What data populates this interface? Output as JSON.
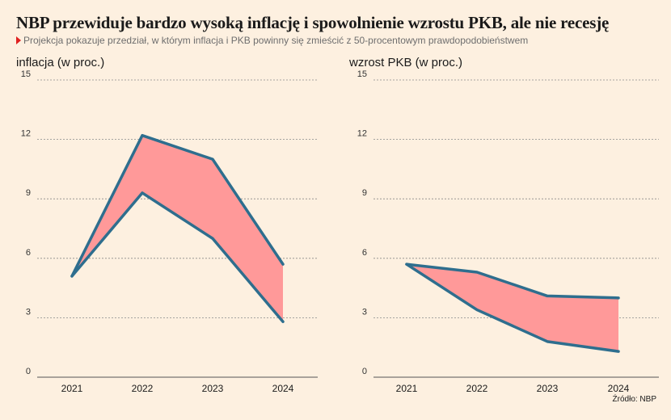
{
  "title": "NBP przewiduje bardzo wysoką inflację i spowolnienie wzrostu PKB, ale nie recesję",
  "subtitle": "Projekcja pokazuje przedział, w którym inflacja i PKB powinny się zmieścić z 50-procentowym prawdopodobieństwem",
  "source": "Źródło: NBP",
  "colors": {
    "band_fill": "#ff9999",
    "line": "#2e6e8e",
    "grid": "#8a8a8a",
    "background": "#fdf0e0"
  },
  "chart_data": [
    {
      "type": "area",
      "title": "inflacja (w proc.)",
      "categories": [
        "2021",
        "2022",
        "2023",
        "2024"
      ],
      "series": [
        {
          "values": [
            5.1,
            12.2,
            11.0,
            5.7
          ]
        },
        {
          "values": [
            5.1,
            9.3,
            7.0,
            2.8
          ]
        }
      ],
      "ylim": [
        0,
        15
      ],
      "yticks": [
        0,
        3,
        6,
        9,
        12,
        15
      ],
      "grid": true
    },
    {
      "type": "area",
      "title": "wzrost PKB (w proc.)",
      "categories": [
        "2021",
        "2022",
        "2023",
        "2024"
      ],
      "series": [
        {
          "values": [
            5.7,
            5.3,
            4.1,
            4.0
          ]
        },
        {
          "values": [
            5.7,
            3.4,
            1.8,
            1.3
          ]
        }
      ],
      "ylim": [
        0,
        15
      ],
      "yticks": [
        0,
        3,
        6,
        9,
        12,
        15
      ],
      "grid": true
    }
  ]
}
